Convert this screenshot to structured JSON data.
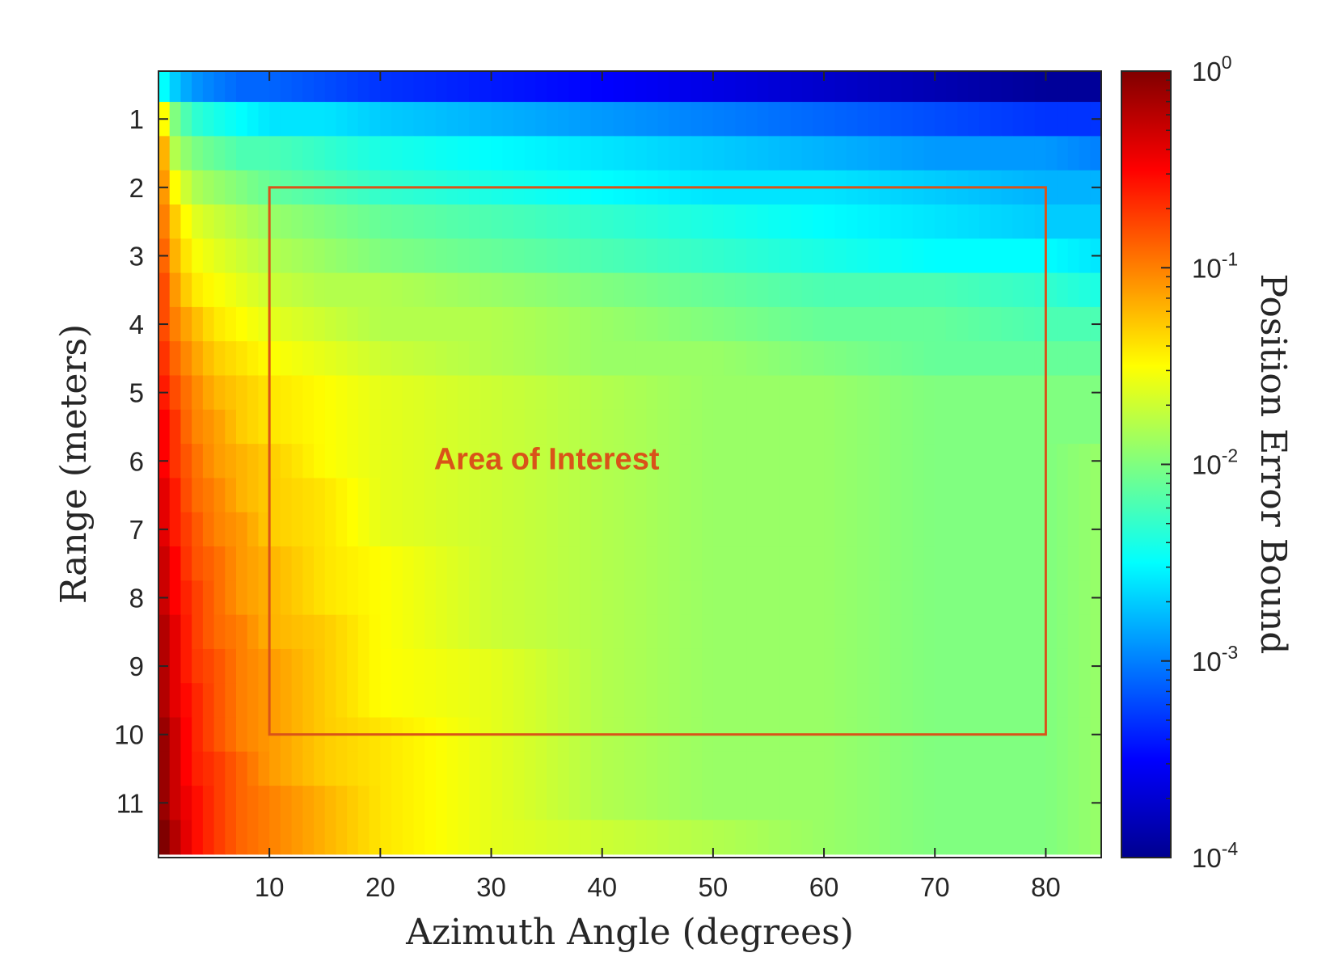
{
  "chart_data": {
    "type": "heatmap",
    "title": "",
    "xlabel": "Azimuth Angle (degrees)",
    "ylabel": "Range (meters)",
    "colorbar_label": "Position Error Bound",
    "colormap": "jet",
    "colorbar_scale": "log",
    "clim": [
      0.0001,
      1
    ],
    "colorbar_ticks": [
      {
        "base": "10",
        "exp": "0"
      },
      {
        "base": "10",
        "exp": "-1"
      },
      {
        "base": "10",
        "exp": "-2"
      },
      {
        "base": "10",
        "exp": "-3"
      },
      {
        "base": "10",
        "exp": "-4"
      }
    ],
    "xlim": [
      0,
      85
    ],
    "ylim": [
      0.3,
      11.8
    ],
    "y_direction": "reversed",
    "x_ticks": [
      "10",
      "20",
      "30",
      "40",
      "50",
      "60",
      "70",
      "80"
    ],
    "y_ticks": [
      "1",
      "2",
      "3",
      "4",
      "5",
      "6",
      "7",
      "8",
      "9",
      "10",
      "11"
    ],
    "grid": false,
    "row_ranges": [
      0.5,
      1,
      1.5,
      2,
      2.5,
      3,
      3.5,
      4,
      4.5,
      5,
      5.5,
      6,
      6.5,
      7,
      7.5,
      8,
      8.5,
      9,
      9.5,
      10,
      10.5,
      11,
      11.5
    ],
    "column_samples_deg": [
      0.5,
      1.5,
      3,
      5,
      7.5,
      10,
      15,
      20,
      30,
      40,
      50,
      60,
      70,
      80,
      85
    ],
    "values_log10": [
      [
        -2.5,
        -2.7,
        -2.9,
        -3.0,
        -3.1,
        -3.1,
        -3.2,
        -3.3,
        -3.4,
        -3.5,
        -3.6,
        -3.7,
        -3.8,
        -3.9,
        -3.9
      ],
      [
        -1.5,
        -2.0,
        -2.3,
        -2.4,
        -2.5,
        -2.6,
        -2.6,
        -2.7,
        -2.8,
        -2.9,
        -3.0,
        -3.1,
        -3.2,
        -3.3,
        -3.3
      ],
      [
        -1.2,
        -1.8,
        -2.0,
        -2.1,
        -2.2,
        -2.2,
        -2.3,
        -2.4,
        -2.5,
        -2.6,
        -2.7,
        -2.8,
        -2.9,
        -2.9,
        -3.0
      ],
      [
        -1.1,
        -1.5,
        -1.8,
        -1.9,
        -2.0,
        -2.1,
        -2.2,
        -2.3,
        -2.4,
        -2.5,
        -2.6,
        -2.6,
        -2.7,
        -2.8,
        -2.8
      ],
      [
        -1.0,
        -1.3,
        -1.6,
        -1.7,
        -1.8,
        -1.9,
        -2.0,
        -2.1,
        -2.2,
        -2.3,
        -2.4,
        -2.5,
        -2.6,
        -2.7,
        -2.7
      ],
      [
        -0.9,
        -1.2,
        -1.5,
        -1.6,
        -1.7,
        -1.8,
        -1.9,
        -2.0,
        -2.1,
        -2.2,
        -2.3,
        -2.4,
        -2.5,
        -2.5,
        -2.6
      ],
      [
        -0.8,
        -1.1,
        -1.4,
        -1.5,
        -1.6,
        -1.7,
        -1.8,
        -1.8,
        -1.9,
        -2.0,
        -2.1,
        -2.2,
        -2.2,
        -2.3,
        -2.4
      ],
      [
        -0.8,
        -1.0,
        -1.2,
        -1.4,
        -1.5,
        -1.6,
        -1.7,
        -1.8,
        -1.8,
        -1.9,
        -2.0,
        -2.1,
        -2.1,
        -2.2,
        -2.2
      ],
      [
        -0.7,
        -0.9,
        -1.1,
        -1.3,
        -1.4,
        -1.5,
        -1.6,
        -1.7,
        -1.8,
        -1.9,
        -1.9,
        -2.0,
        -2.1,
        -2.1,
        -2.1
      ],
      [
        -0.6,
        -0.8,
        -1.0,
        -1.2,
        -1.3,
        -1.4,
        -1.5,
        -1.6,
        -1.7,
        -1.8,
        -1.9,
        -1.9,
        -2.0,
        -2.0,
        -2.0
      ],
      [
        -0.5,
        -0.7,
        -1.0,
        -1.1,
        -1.3,
        -1.4,
        -1.5,
        -1.6,
        -1.7,
        -1.8,
        -1.9,
        -1.9,
        -2.0,
        -2.0,
        -2.0
      ],
      [
        -0.5,
        -0.7,
        -0.9,
        -1.1,
        -1.2,
        -1.3,
        -1.5,
        -1.6,
        -1.7,
        -1.8,
        -1.9,
        -1.9,
        -2.0,
        -2.0,
        -1.9
      ],
      [
        -0.4,
        -0.6,
        -0.9,
        -1.0,
        -1.2,
        -1.3,
        -1.4,
        -1.6,
        -1.7,
        -1.8,
        -1.9,
        -1.9,
        -2.0,
        -2.0,
        -1.9
      ],
      [
        -0.4,
        -0.6,
        -0.8,
        -1.0,
        -1.1,
        -1.3,
        -1.4,
        -1.6,
        -1.7,
        -1.8,
        -1.9,
        -1.9,
        -2.0,
        -2.0,
        -1.9
      ],
      [
        -0.3,
        -0.5,
        -0.8,
        -0.9,
        -1.1,
        -1.2,
        -1.4,
        -1.5,
        -1.7,
        -1.8,
        -1.9,
        -1.9,
        -2.0,
        -2.0,
        -1.9
      ],
      [
        -0.3,
        -0.5,
        -0.7,
        -0.9,
        -1.1,
        -1.2,
        -1.4,
        -1.5,
        -1.7,
        -1.8,
        -1.9,
        -1.9,
        -2.0,
        -2.0,
        -1.9
      ],
      [
        -0.2,
        -0.4,
        -0.7,
        -0.9,
        -1.0,
        -1.2,
        -1.3,
        -1.5,
        -1.7,
        -1.8,
        -1.9,
        -1.9,
        -2.0,
        -2.0,
        -1.9
      ],
      [
        -0.2,
        -0.4,
        -0.7,
        -0.8,
        -1.0,
        -1.1,
        -1.3,
        -1.5,
        -1.6,
        -1.8,
        -1.9,
        -1.9,
        -2.0,
        -2.0,
        -1.9
      ],
      [
        -0.2,
        -0.4,
        -0.6,
        -0.8,
        -1.0,
        -1.1,
        -1.3,
        -1.5,
        -1.6,
        -1.8,
        -1.9,
        -1.9,
        -2.0,
        -2.0,
        -1.9
      ],
      [
        -0.1,
        -0.3,
        -0.6,
        -0.8,
        -1.0,
        -1.1,
        -1.3,
        -1.4,
        -1.6,
        -1.8,
        -1.9,
        -1.9,
        -2.0,
        -2.0,
        -1.9
      ],
      [
        -0.1,
        -0.3,
        -0.6,
        -0.7,
        -0.9,
        -1.1,
        -1.3,
        -1.4,
        -1.6,
        -1.8,
        -1.9,
        -1.9,
        -2.0,
        -2.0,
        -1.9
      ],
      [
        -0.1,
        -0.3,
        -0.5,
        -0.7,
        -0.9,
        -1.0,
        -1.2,
        -1.4,
        -1.6,
        -1.8,
        -1.9,
        -1.9,
        -2.0,
        -2.0,
        -1.9
      ],
      [
        0.0,
        -0.2,
        -0.5,
        -0.7,
        -0.9,
        -1.0,
        -1.2,
        -1.4,
        -1.6,
        -1.7,
        -1.8,
        -1.9,
        -2.0,
        -2.0,
        -1.9
      ]
    ],
    "annotation": {
      "text": "Area of Interest",
      "x": 35,
      "y": 6,
      "rect": {
        "x_min": 10,
        "x_max": 80,
        "y_min": 2,
        "y_max": 10
      },
      "color": "#d95319"
    }
  }
}
